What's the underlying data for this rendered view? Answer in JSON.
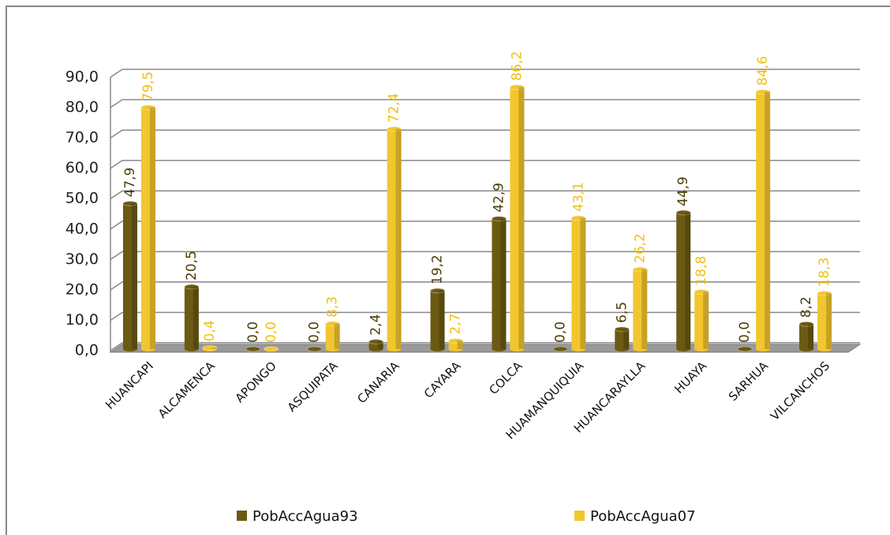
{
  "chart_data": {
    "type": "bar",
    "categories": [
      "HUANCAPI",
      "ALCAMENCA",
      "APONGO",
      "ASQUIPATA",
      "CANARIA",
      "CAYARA",
      "COLCA",
      "HUAMANQUIQUIA",
      "HUANCARAYLLA",
      "HUAYA",
      "SARHUA",
      "VILCANCHOS"
    ],
    "series": [
      {
        "name": "PobAccAgua93",
        "color": "#6b5a12",
        "label_color": "#4a3e08",
        "values": [
          47.9,
          20.5,
          0.0,
          0.0,
          2.4,
          19.2,
          42.9,
          0.0,
          6.5,
          44.9,
          0.0,
          8.2
        ],
        "value_labels": [
          "47,9",
          "20,5",
          "0,0",
          "0,0",
          "2,4",
          "19,2",
          "42,9",
          "0,0",
          "6,5",
          "44,9",
          "0,0",
          "8,2"
        ]
      },
      {
        "name": "PobAccAgua07",
        "color": "#f2c62e",
        "label_color": "#f0c010",
        "values": [
          79.5,
          0.4,
          0.0,
          8.3,
          72.4,
          2.7,
          86.2,
          43.1,
          26.2,
          18.8,
          84.6,
          18.3
        ],
        "value_labels": [
          "79,5",
          "0,4",
          "0,0",
          "8,3",
          "72,4",
          "2,7",
          "86,2",
          "43,1",
          "26,2",
          "18,8",
          "84,6",
          "18,3"
        ]
      }
    ],
    "ylim": [
      0,
      90
    ],
    "yticks": [
      {
        "value": 0,
        "label": "0,0"
      },
      {
        "value": 10,
        "label": "10,0"
      },
      {
        "value": 20,
        "label": "20,0"
      },
      {
        "value": 30,
        "label": "30,0"
      },
      {
        "value": 40,
        "label": "40,0"
      },
      {
        "value": 50,
        "label": "50,0"
      },
      {
        "value": 60,
        "label": "60,0"
      },
      {
        "value": 70,
        "label": "70,0"
      },
      {
        "value": 80,
        "label": "80,0"
      },
      {
        "value": 90,
        "label": "90,0"
      }
    ],
    "grid": true,
    "legend": "bottom"
  }
}
